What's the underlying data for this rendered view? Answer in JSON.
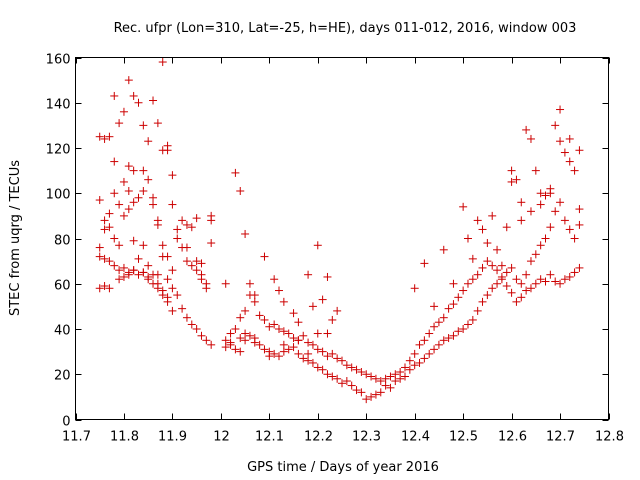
{
  "chart_data": {
    "type": "scatter",
    "title": "Rec. ufpr (Lon=310, Lat=-25, h=HE), days 011-012, 2016, window 003",
    "xlabel": "GPS time / Days of year 2016",
    "ylabel": "STEC from uqrg / TECUs",
    "xlim": [
      11.7,
      12.8
    ],
    "ylim": [
      0,
      160
    ],
    "xticks": [
      "11.7",
      "11.8",
      "11.9",
      "12",
      "12.1",
      "12.2",
      "12.3",
      "12.4",
      "12.5",
      "12.6",
      "12.7",
      "12.8"
    ],
    "yticks": [
      "0",
      "20",
      "40",
      "60",
      "80",
      "100",
      "120",
      "140",
      "160"
    ],
    "grid": false,
    "marker": "+",
    "color": "#cc0000",
    "series": [
      {
        "x": [
          11.75,
          11.76,
          11.77,
          11.78,
          11.79,
          11.8,
          11.81,
          11.82,
          11.83,
          11.84,
          11.85,
          11.86,
          11.87,
          11.88,
          11.89,
          11.9,
          11.91,
          11.92,
          11.93,
          11.94,
          11.95,
          11.96,
          11.97,
          11.98,
          11.75,
          11.76,
          11.77,
          11.78,
          11.79,
          11.8,
          11.81,
          11.82,
          11.83,
          11.84,
          11.85,
          11.86,
          11.87,
          11.88,
          11.89,
          11.9,
          11.91,
          11.92,
          11.93,
          11.94,
          11.95,
          11.96,
          11.97,
          11.98,
          11.75,
          11.76,
          11.77,
          11.78,
          11.79,
          11.8,
          11.81,
          11.82,
          11.83,
          11.84,
          11.85,
          11.86,
          11.87,
          11.88,
          11.89,
          11.9,
          11.91,
          11.92,
          11.93,
          11.94,
          11.95,
          11.96,
          11.97,
          11.98,
          11.75,
          11.76,
          11.77,
          11.78,
          11.79,
          11.8,
          11.81,
          11.82,
          11.83,
          11.84,
          11.85,
          11.86,
          11.87,
          11.88,
          11.89,
          11.9,
          11.75,
          11.76,
          11.77,
          11.79,
          11.8,
          11.81,
          11.82,
          11.84,
          11.85,
          11.87,
          11.88,
          11.89,
          11.78,
          11.81,
          11.82,
          11.84,
          11.86,
          11.87,
          11.88,
          11.89,
          11.9,
          11.93,
          11.95,
          11.96,
          11.98,
          12.01,
          12.02,
          12.03,
          12.04,
          12.05,
          12.06,
          12.07,
          12.08,
          12.09,
          12.1,
          12.11,
          12.12,
          12.13,
          12.14,
          12.15,
          12.16,
          12.17,
          12.18,
          12.19,
          12.2,
          12.21,
          12.22,
          12.23,
          12.24,
          12.25,
          12.26,
          12.27,
          12.28,
          12.29,
          12.01,
          12.02,
          12.03,
          12.04,
          12.05,
          12.06,
          12.07,
          12.08,
          12.09,
          12.1,
          12.11,
          12.12,
          12.13,
          12.14,
          12.15,
          12.16,
          12.17,
          12.18,
          12.19,
          12.2,
          12.21,
          12.22,
          12.23,
          12.24,
          12.25,
          12.26,
          12.27,
          12.28,
          12.29,
          12.01,
          12.03,
          12.04,
          12.05,
          12.06,
          12.07,
          12.09,
          12.11,
          12.12,
          12.13,
          12.15,
          12.16,
          12.18,
          12.19,
          12.2,
          12.21,
          12.22,
          12.23,
          12.24,
          12.02,
          12.04,
          12.05,
          12.07,
          12.1,
          12.13,
          12.16,
          12.18,
          12.2,
          12.22,
          12.3,
          12.31,
          12.32,
          12.33,
          12.34,
          12.35,
          12.36,
          12.37,
          12.38,
          12.39,
          12.4,
          12.41,
          12.42,
          12.43,
          12.44,
          12.45,
          12.46,
          12.47,
          12.48,
          12.49,
          12.5,
          12.51,
          12.52,
          12.53,
          12.54,
          12.55,
          12.56,
          12.57,
          12.58,
          12.59,
          12.6,
          12.3,
          12.31,
          12.32,
          12.33,
          12.34,
          12.35,
          12.36,
          12.37,
          12.38,
          12.39,
          12.4,
          12.41,
          12.42,
          12.43,
          12.44,
          12.45,
          12.46,
          12.47,
          12.48,
          12.49,
          12.5,
          12.51,
          12.52,
          12.53,
          12.54,
          12.55,
          12.56,
          12.57,
          12.58,
          12.59,
          12.6,
          12.4,
          12.42,
          12.44,
          12.46,
          12.48,
          12.5,
          12.51,
          12.52,
          12.53,
          12.54,
          12.55,
          12.56,
          12.57,
          12.58,
          12.59,
          12.6,
          12.61,
          12.62,
          12.63,
          12.64,
          12.65,
          12.66,
          12.67,
          12.68,
          12.69,
          12.7,
          12.71,
          12.72,
          12.73,
          12.74,
          12.61,
          12.62,
          12.63,
          12.64,
          12.65,
          12.66,
          12.67,
          12.68,
          12.69,
          12.7,
          12.71,
          12.72,
          12.73,
          12.74,
          12.61,
          12.62,
          12.63,
          12.64,
          12.65,
          12.66,
          12.67,
          12.68,
          12.69,
          12.7,
          12.71,
          12.72,
          12.73,
          12.74,
          12.6,
          12.62,
          12.64,
          12.66,
          12.68,
          12.7,
          12.72,
          12.74
        ],
        "y": [
          125,
          124,
          125,
          143,
          131,
          136,
          150,
          143,
          140,
          130,
          123,
          141,
          131,
          158,
          119,
          108,
          84,
          76,
          70,
          68,
          66,
          62,
          60,
          88,
          97,
          88,
          91,
          100,
          95,
          105,
          101,
          110,
          98,
          101,
          106,
          95,
          88,
          119,
          121,
          95,
          80,
          88,
          86,
          85,
          89,
          64,
          58,
          90,
          76,
          84,
          85,
          80,
          77,
          90,
          93,
          79,
          71,
          77,
          68,
          64,
          64,
          72,
          62,
          58,
          55,
          49,
          45,
          42,
          40,
          37,
          35,
          33,
          72,
          71,
          70,
          68,
          66,
          67,
          65,
          66,
          64,
          65,
          62,
          60,
          58,
          55,
          52,
          48,
          58,
          59,
          58,
          62,
          63,
          64,
          66,
          65,
          63,
          60,
          57,
          54,
          114,
          112,
          96,
          110,
          98,
          86,
          77,
          72,
          66,
          76,
          70,
          69,
          78,
          35,
          33,
          31,
          36,
          38,
          37,
          36,
          33,
          31,
          30,
          29,
          28,
          30,
          31,
          32,
          29,
          27,
          26,
          25,
          23,
          22,
          20,
          19,
          18,
          16,
          17,
          15,
          13,
          12,
          32,
          34,
          40,
          45,
          48,
          55,
          52,
          46,
          44,
          41,
          42,
          40,
          39,
          38,
          36,
          35,
          37,
          34,
          33,
          31,
          30,
          28,
          29,
          27,
          26,
          24,
          23,
          22,
          21,
          60,
          109,
          101,
          82,
          60,
          55,
          72,
          62,
          57,
          52,
          47,
          43,
          64,
          50,
          77,
          53,
          63,
          44,
          48,
          38,
          30,
          35,
          34,
          28,
          33,
          35,
          29,
          38,
          38,
          20,
          19,
          18,
          17,
          18,
          19,
          20,
          21,
          19,
          22,
          24,
          25,
          27,
          29,
          31,
          33,
          35,
          36,
          37,
          39,
          40,
          42,
          44,
          48,
          52,
          55,
          58,
          60,
          62,
          65,
          67,
          9,
          10,
          11,
          12,
          15,
          14,
          17,
          18,
          23,
          26,
          29,
          33,
          35,
          38,
          41,
          43,
          45,
          49,
          51,
          54,
          57,
          60,
          62,
          64,
          67,
          70,
          68,
          66,
          63,
          59,
          56,
          58,
          69,
          50,
          75,
          60,
          94,
          80,
          71,
          88,
          84,
          78,
          90,
          75,
          68,
          85,
          105,
          106,
          96,
          128,
          124,
          110,
          100,
          99,
          102,
          130,
          137,
          118,
          114,
          110,
          119,
          62,
          60,
          64,
          70,
          73,
          77,
          80,
          85,
          92,
          96,
          88,
          84,
          80,
          86,
          52,
          54,
          57,
          58,
          60,
          62,
          61,
          64,
          61,
          60,
          62,
          63,
          65,
          67,
          110,
          88,
          92,
          95,
          100,
          123,
          124,
          93
        ],
        "x_extra_note": ""
      }
    ]
  }
}
